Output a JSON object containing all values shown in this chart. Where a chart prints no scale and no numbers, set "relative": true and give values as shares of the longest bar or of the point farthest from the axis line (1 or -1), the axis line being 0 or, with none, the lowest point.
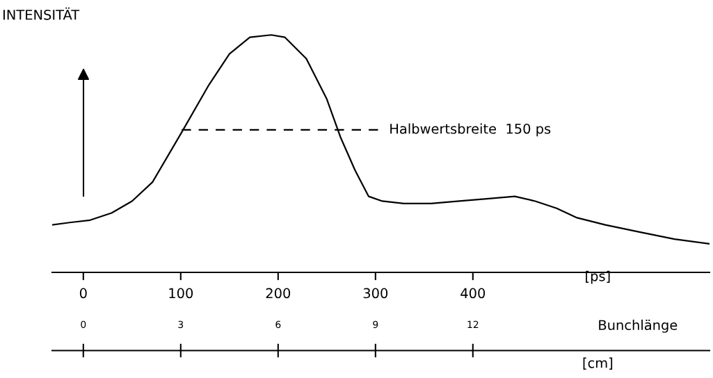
{
  "chart_data": {
    "type": "line",
    "relative": true,
    "ylabel": "INTENSITÄT",
    "xlabel": "[ps]",
    "x2label": "[cm]",
    "xlim": [
      -32,
      643
    ],
    "xticks": [
      0,
      100,
      200,
      300,
      400
    ],
    "x2lim": [
      -0.96,
      19.29
    ],
    "x2ticks": [
      0,
      3,
      6,
      9,
      12
    ],
    "grid": false,
    "legend": false,
    "series": [
      {
        "color": "#000000",
        "line_style": "solid",
        "x": [
          -32,
          -14,
          7,
          29,
          50,
          71,
          101,
          129,
          150,
          171,
          193,
          207,
          229,
          250,
          264,
          279,
          293,
          307,
          329,
          357,
          386,
          414,
          443,
          464,
          486,
          507,
          536,
          571,
          607,
          643
        ],
        "values": [
          0.2,
          0.21,
          0.22,
          0.25,
          0.3,
          0.38,
          0.59,
          0.79,
          0.92,
          0.99,
          1.0,
          0.99,
          0.9,
          0.73,
          0.57,
          0.43,
          0.32,
          0.3,
          0.29,
          0.29,
          0.3,
          0.31,
          0.32,
          0.3,
          0.27,
          0.23,
          0.2,
          0.17,
          0.14,
          0.12
        ]
      },
      {
        "color": "#000000",
        "line_style": "dashed",
        "x": [
          101,
          304
        ],
        "values": [
          0.6,
          0.6
        ]
      }
    ],
    "annotations": [
      "Halbwertsbreite  150 ps",
      "Bunchlänge"
    ]
  }
}
